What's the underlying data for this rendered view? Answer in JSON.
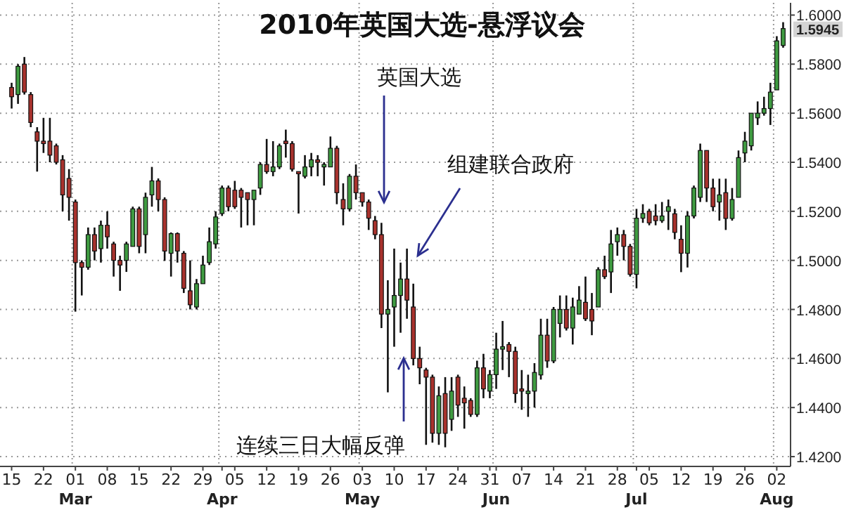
{
  "chart_data": {
    "type": "candlestick",
    "title": "2010年英国大选-悬浮议会",
    "categories": [
      "15",
      null,
      null,
      null,
      null,
      "22",
      null,
      null,
      null,
      null,
      "01\nMar",
      null,
      null,
      null,
      null,
      "08",
      null,
      null,
      null,
      null,
      "15",
      null,
      null,
      null,
      null,
      "22",
      null,
      null,
      null,
      null,
      "29",
      null,
      null,
      "\nApr",
      null,
      "05",
      null,
      null,
      null,
      null,
      "12",
      null,
      null,
      null,
      null,
      "19",
      null,
      null,
      null,
      null,
      "26",
      null,
      null,
      null,
      null,
      "03\nMay",
      null,
      null,
      null,
      null,
      "10",
      null,
      null,
      null,
      null,
      "17",
      null,
      null,
      null,
      null,
      "24",
      null,
      null,
      null,
      null,
      "31",
      "\nJun",
      null,
      null,
      null,
      "07",
      null,
      null,
      null,
      null,
      "14",
      null,
      null,
      null,
      null,
      "21",
      null,
      null,
      null,
      null,
      "28",
      null,
      null,
      "\nJul",
      null,
      "05",
      null,
      null,
      null,
      null,
      "12",
      null,
      null,
      null,
      null,
      "19",
      null,
      null,
      null,
      null,
      "26",
      null,
      null,
      null,
      null,
      "02\nAug",
      null
    ],
    "ohlc": [
      [
        1.5705,
        1.5724,
        1.5619,
        1.5667
      ],
      [
        1.5676,
        1.58,
        1.5638,
        1.5791
      ],
      [
        1.58,
        1.5829,
        1.5676,
        1.5686
      ],
      [
        1.5676,
        1.5686,
        1.5543,
        1.5562
      ],
      [
        1.5524,
        1.5543,
        1.5362,
        1.5486
      ],
      [
        1.5486,
        1.5581,
        1.5438,
        1.5476
      ],
      [
        1.5486,
        1.5581,
        1.54,
        1.5429
      ],
      [
        1.5467,
        1.5476,
        1.5391,
        1.54
      ],
      [
        1.541,
        1.5429,
        1.52,
        1.5267
      ],
      [
        1.5334,
        1.5372,
        1.5162,
        1.5257
      ],
      [
        1.5238,
        1.5248,
        1.4791,
        1.4991
      ],
      [
        1.4991,
        1.5,
        1.4857,
        1.4972
      ],
      [
        1.4972,
        1.5134,
        1.4962,
        1.5105
      ],
      [
        1.5105,
        1.5134,
        1.5,
        1.5038
      ],
      [
        1.5048,
        1.5162,
        1.4991,
        1.5143
      ],
      [
        1.5143,
        1.52,
        1.5048,
        1.5096
      ],
      [
        1.5067,
        1.5076,
        1.4934,
        1.5
      ],
      [
        1.5,
        1.5019,
        1.4876,
        1.4981
      ],
      [
        1.5,
        1.5076,
        1.4953,
        1.5067
      ],
      [
        1.5057,
        1.5219,
        1.5057,
        1.521
      ],
      [
        1.521,
        1.5219,
        1.5029,
        1.5057
      ],
      [
        1.5105,
        1.5276,
        1.5029,
        1.5257
      ],
      [
        1.5267,
        1.5381,
        1.5219,
        1.5324
      ],
      [
        1.5324,
        1.5334,
        1.52,
        1.5248
      ],
      [
        1.5248,
        1.5257,
        1.4998,
        1.5038
      ],
      [
        1.5029,
        1.5114,
        1.4934,
        1.5109
      ],
      [
        1.5109,
        1.5114,
        1.4991,
        1.5038
      ],
      [
        1.5029,
        1.5038,
        1.4867,
        1.4886
      ],
      [
        1.4876,
        1.5,
        1.48,
        1.4819
      ],
      [
        1.481,
        1.4924,
        1.48,
        1.4905
      ],
      [
        1.4905,
        1.5019,
        1.4905,
        1.4981
      ],
      [
        1.4991,
        1.5134,
        1.4981,
        1.5076
      ],
      [
        1.5067,
        1.52,
        1.5048,
        1.5177
      ],
      [
        1.5191,
        1.5305,
        1.5181,
        1.5295
      ],
      [
        1.5295,
        1.5305,
        1.52,
        1.5219
      ],
      [
        1.5286,
        1.5324,
        1.521,
        1.5219
      ],
      [
        1.5286,
        1.5295,
        1.5134,
        1.5257
      ],
      [
        1.5276,
        1.5276,
        1.5143,
        1.5248
      ],
      [
        1.5248,
        1.5286,
        1.5143,
        1.5286
      ],
      [
        1.5295,
        1.54,
        1.5267,
        1.5391
      ],
      [
        1.5391,
        1.5495,
        1.5353,
        1.5362
      ],
      [
        1.5362,
        1.5486,
        1.5343,
        1.5381
      ],
      [
        1.5381,
        1.5476,
        1.5372,
        1.5467
      ],
      [
        1.5486,
        1.5533,
        1.5419,
        1.5476
      ],
      [
        1.5476,
        1.5486,
        1.5362,
        1.5372
      ],
      [
        1.5362,
        1.5362,
        1.5191,
        1.5353
      ],
      [
        1.5343,
        1.5429,
        1.5334,
        1.5381
      ],
      [
        1.5381,
        1.5438,
        1.5343,
        1.541
      ],
      [
        1.541,
        1.5429,
        1.5343,
        1.54
      ],
      [
        1.5381,
        1.54,
        1.5305,
        1.5391
      ],
      [
        1.5381,
        1.5505,
        1.5381,
        1.5457
      ],
      [
        1.5457,
        1.5467,
        1.5229,
        1.5276
      ],
      [
        1.5248,
        1.5314,
        1.5143,
        1.521
      ],
      [
        1.521,
        1.5352,
        1.52,
        1.5343
      ],
      [
        1.5343,
        1.5391,
        1.5248,
        1.5276
      ],
      [
        1.5276,
        1.5276,
        1.5219,
        1.5238
      ],
      [
        1.5238,
        1.5248,
        1.5124,
        1.5172
      ],
      [
        1.5162,
        1.5181,
        1.5086,
        1.5105
      ],
      [
        1.5105,
        1.5153,
        1.4724,
        1.4781
      ],
      [
        1.4781,
        1.4919,
        1.4462,
        1.48
      ],
      [
        1.481,
        1.5048,
        1.4648,
        1.4857
      ],
      [
        1.4857,
        1.4991,
        1.4705,
        1.4924
      ],
      [
        1.4924,
        1.5048,
        1.4762,
        1.4838
      ],
      [
        1.481,
        1.4905,
        1.4572,
        1.46
      ],
      [
        1.46,
        1.4648,
        1.4495,
        1.4562
      ],
      [
        1.4553,
        1.4562,
        1.4248,
        1.4524
      ],
      [
        1.4524,
        1.4534,
        1.4257,
        1.4295
      ],
      [
        1.4295,
        1.4486,
        1.4248,
        1.4448
      ],
      [
        1.4457,
        1.4524,
        1.4238,
        1.4295
      ],
      [
        1.4352,
        1.4524,
        1.4305,
        1.4467
      ],
      [
        1.4524,
        1.4534,
        1.4362,
        1.441
      ],
      [
        1.4438,
        1.4486,
        1.4314,
        1.4419
      ],
      [
        1.4429,
        1.4438,
        1.4362,
        1.4372
      ],
      [
        1.4372,
        1.4591,
        1.4362,
        1.4562
      ],
      [
        1.4562,
        1.4619,
        1.4438,
        1.4476
      ],
      [
        1.4467,
        1.4553,
        1.4438,
        1.4534
      ],
      [
        1.4534,
        1.4705,
        1.4476,
        1.4638
      ],
      [
        1.4638,
        1.4753,
        1.4553,
        1.4648
      ],
      [
        1.4657,
        1.4667,
        1.4524,
        1.4629
      ],
      [
        1.4629,
        1.4648,
        1.4419,
        1.4457
      ],
      [
        1.4476,
        1.4553,
        1.4391,
        1.4467
      ],
      [
        1.4457,
        1.4534,
        1.4362,
        1.4467
      ],
      [
        1.4467,
        1.4581,
        1.44,
        1.4543
      ],
      [
        1.4533,
        1.4762,
        1.4514,
        1.4695
      ],
      [
        1.4695,
        1.4762,
        1.4562,
        1.459
      ],
      [
        1.459,
        1.481,
        1.4581,
        1.48
      ],
      [
        1.4743,
        1.4857,
        1.4686,
        1.48
      ],
      [
        1.48,
        1.4857,
        1.4714,
        1.4724
      ],
      [
        1.4724,
        1.4848,
        1.4657,
        1.481
      ],
      [
        1.4781,
        1.4895,
        1.4781,
        1.4838
      ],
      [
        1.4829,
        1.4934,
        1.4753,
        1.4762
      ],
      [
        1.48,
        1.4867,
        1.4695,
        1.4753
      ],
      [
        1.481,
        1.4972,
        1.481,
        1.4962
      ],
      [
        1.4962,
        1.5019,
        1.4924,
        1.4934
      ],
      [
        1.4953,
        1.5124,
        1.4867,
        1.5067
      ],
      [
        1.5076,
        1.5134,
        1.5019,
        1.5105
      ],
      [
        1.5105,
        1.5124,
        1.5,
        1.5057
      ],
      [
        1.5057,
        1.5067,
        1.4934,
        1.4943
      ],
      [
        1.4943,
        1.521,
        1.4886,
        1.5172
      ],
      [
        1.5172,
        1.5229,
        1.5153,
        1.5191
      ],
      [
        1.52,
        1.521,
        1.5143,
        1.5153
      ],
      [
        1.5181,
        1.5229,
        1.5143,
        1.5162
      ],
      [
        1.5162,
        1.5238,
        1.5153,
        1.5181
      ],
      [
        1.52,
        1.5248,
        1.5124,
        1.5219
      ],
      [
        1.519,
        1.521,
        1.5086,
        1.5114
      ],
      [
        1.5086,
        1.5143,
        1.4952,
        1.5029
      ],
      [
        1.5029,
        1.52,
        1.4971,
        1.5181
      ],
      [
        1.5181,
        1.5305,
        1.5171,
        1.5295
      ],
      [
        1.5257,
        1.5476,
        1.5238,
        1.5448
      ],
      [
        1.5448,
        1.5448,
        1.5238,
        1.5295
      ],
      [
        1.5295,
        1.5333,
        1.52,
        1.5219
      ],
      [
        1.5238,
        1.5333,
        1.5162,
        1.5267
      ],
      [
        1.5276,
        1.5333,
        1.5124,
        1.5171
      ],
      [
        1.5171,
        1.5295,
        1.5162,
        1.5248
      ],
      [
        1.5257,
        1.5448,
        1.5257,
        1.5419
      ],
      [
        1.5438,
        1.5524,
        1.54,
        1.5486
      ],
      [
        1.5467,
        1.56,
        1.5448,
        1.56
      ],
      [
        1.5581,
        1.5648,
        1.5552,
        1.56
      ],
      [
        1.56,
        1.5667,
        1.559,
        1.5619
      ],
      [
        1.5619,
        1.5724,
        1.5552,
        1.5686
      ],
      [
        1.5695,
        1.5914,
        1.5695,
        1.5895
      ],
      [
        1.5876,
        1.5971,
        1.5867,
        1.5945
      ]
    ],
    "ylim": [
      1.416,
      1.605
    ],
    "yticks": [
      {
        "value": 1.42,
        "label": "1.4200"
      },
      {
        "value": 1.44,
        "label": "1.4400"
      },
      {
        "value": 1.46,
        "label": "1.4600"
      },
      {
        "value": 1.48,
        "label": "1.4800"
      },
      {
        "value": 1.5,
        "label": "1.5000"
      },
      {
        "value": 1.52,
        "label": "1.5200"
      },
      {
        "value": 1.54,
        "label": "1.5400"
      },
      {
        "value": 1.56,
        "label": "1.5600"
      },
      {
        "value": 1.58,
        "label": "1.5800"
      },
      {
        "value": 1.6,
        "label": "1.6000"
      }
    ],
    "grid": true,
    "annotations": [
      "英国大选",
      "组建联合政府",
      "连续三日大幅反弹",
      "1.5945"
    ]
  }
}
